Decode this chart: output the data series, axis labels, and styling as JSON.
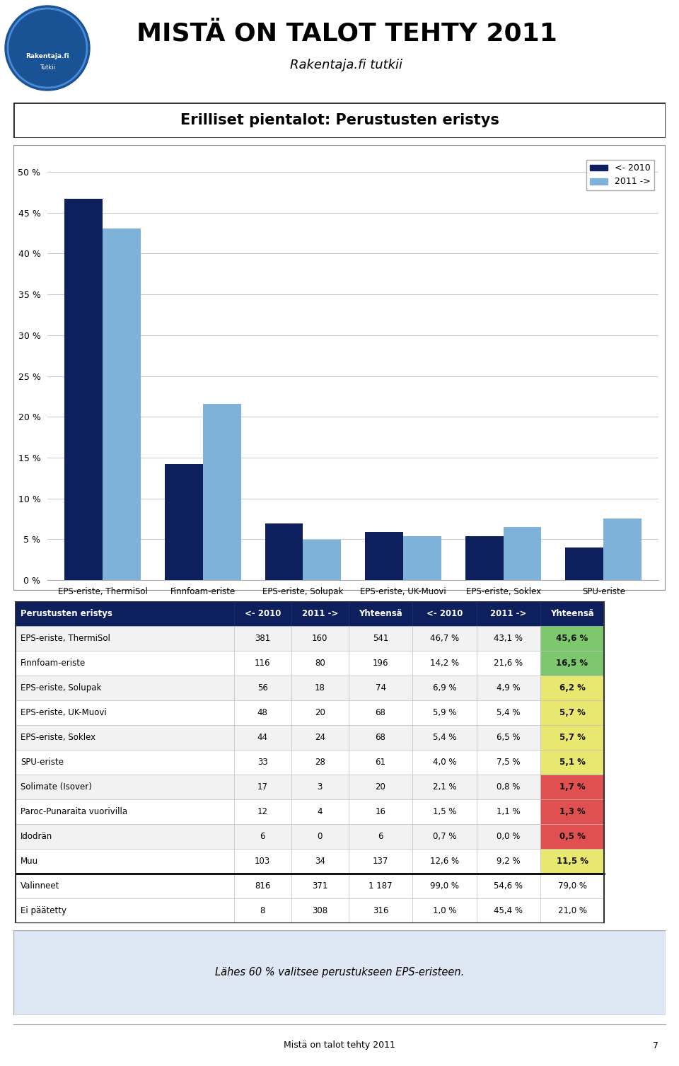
{
  "title": "MISTÄ ON TALOT TEHTY 2011",
  "subtitle": "Rakentaja.fi tutkii",
  "section_title": "Erilliset pientalot: Perustusten eristys",
  "categories": [
    "EPS-eriste, ThermiSol",
    "Finnfoam-eriste",
    "EPS-eriste, Solupak",
    "EPS-eriste, UK-Muovi",
    "EPS-eriste, Soklex",
    "SPU-eriste"
  ],
  "values_2010": [
    46.7,
    14.2,
    6.9,
    5.9,
    5.4,
    4.0
  ],
  "values_2011": [
    43.1,
    21.6,
    4.9,
    5.4,
    6.5,
    7.5
  ],
  "color_2010": "#0d1f5c",
  "color_2011": "#7fb2d8",
  "legend_2010": "<- 2010",
  "legend_2011": "2011 ->",
  "yticks": [
    0,
    5,
    10,
    15,
    20,
    25,
    30,
    35,
    40,
    45,
    50
  ],
  "ytick_labels": [
    "0 %",
    "5 %",
    "10 %",
    "15 %",
    "20 %",
    "25 %",
    "30 %",
    "35 %",
    "40 %",
    "45 %",
    "50 %"
  ],
  "table_header": [
    "Perustusten eristys",
    "<- 2010",
    "2011 ->",
    "Yhteensä",
    "<- 2010",
    "2011 ->",
    "Yhteensä"
  ],
  "table_header_bg": "#0d1f5c",
  "table_header_color": "#ffffff",
  "table_rows": [
    [
      "EPS-eriste, ThermiSol",
      "381",
      "160",
      "541",
      "46,7 %",
      "43,1 %",
      "45,6 %"
    ],
    [
      "Finnfoam-eriste",
      "116",
      "80",
      "196",
      "14,2 %",
      "21,6 %",
      "16,5 %"
    ],
    [
      "EPS-eriste, Solupak",
      "56",
      "18",
      "74",
      "6,9 %",
      "4,9 %",
      "6,2 %"
    ],
    [
      "EPS-eriste, UK-Muovi",
      "48",
      "20",
      "68",
      "5,9 %",
      "5,4 %",
      "5,7 %"
    ],
    [
      "EPS-eriste, Soklex",
      "44",
      "24",
      "68",
      "5,4 %",
      "6,5 %",
      "5,7 %"
    ],
    [
      "SPU-eriste",
      "33",
      "28",
      "61",
      "4,0 %",
      "7,5 %",
      "5,1 %"
    ],
    [
      "Solimate (Isover)",
      "17",
      "3",
      "20",
      "2,1 %",
      "0,8 %",
      "1,7 %"
    ],
    [
      "Paroc-Punaraita vuorivilla",
      "12",
      "4",
      "16",
      "1,5 %",
      "1,1 %",
      "1,3 %"
    ],
    [
      "Idodrän",
      "6",
      "0",
      "6",
      "0,7 %",
      "0,0 %",
      "0,5 %"
    ],
    [
      "Muu",
      "103",
      "34",
      "137",
      "12,6 %",
      "9,2 %",
      "11,5 %"
    ]
  ],
  "table_footer": [
    [
      "Valinneet",
      "816",
      "371",
      "1 187",
      "99,0 %",
      "54,6 %",
      "79,0 %"
    ],
    [
      "Ei päätetty",
      "8",
      "308",
      "316",
      "1,0 %",
      "45,4 %",
      "21,0 %"
    ]
  ],
  "last_col_colors": [
    "#7dc86e",
    "#7dc86e",
    "#e8e870",
    "#e8e870",
    "#e8e870",
    "#e8e870",
    "#e05050",
    "#e05050",
    "#e05050",
    "#e8e870"
  ],
  "footnote": "Lähes 60 % valitsee perustukseen EPS-eristeen.",
  "page_number": "7",
  "page_label": "Mistä on talot tehty 2011",
  "background_color": "#ffffff",
  "chart_bg": "#ffffff",
  "border_color": "#222222",
  "logo_bg": "#1a5296",
  "logo_ring": "#2a6ab8"
}
